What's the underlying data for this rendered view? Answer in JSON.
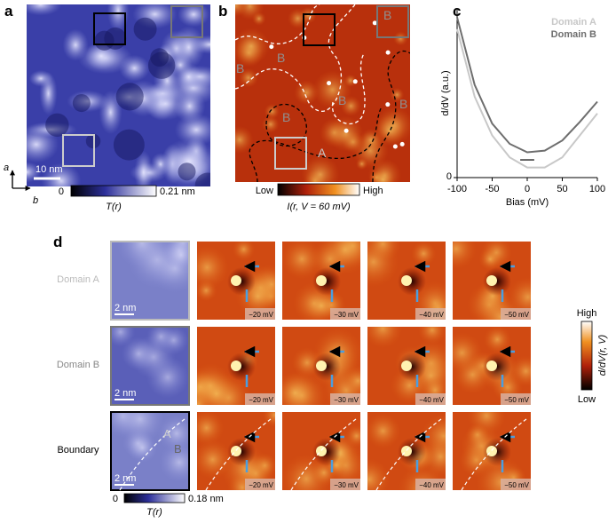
{
  "figure": {
    "a": {
      "label": "a",
      "scale_bar": "10 nm",
      "axis_a": "a",
      "axis_b": "b",
      "colorbar": {
        "min": "0",
        "max": "0.21 nm",
        "title": "T(r)"
      }
    },
    "b": {
      "label": "b",
      "domain_labels": [
        "B",
        "B",
        "B",
        "B",
        "B",
        "B",
        "A"
      ],
      "colorbar": {
        "min": "Low",
        "max": "High",
        "title": "I(r, V = 60 mV)"
      }
    },
    "c": {
      "label": "c"
    },
    "d": {
      "label": "d",
      "rows": [
        "Domain A",
        "Domain B",
        "Boundary"
      ],
      "biases": [
        "−20 mV",
        "−30 mV",
        "−40 mV",
        "−50 mV"
      ],
      "scale_bar": "2 nm",
      "boundary_labels": [
        "A",
        "B"
      ],
      "colorbar": {
        "max": "High",
        "min": "Low",
        "title": "d/dV(r, V)"
      },
      "topo_colorbar": {
        "min": "0",
        "max": "0.18 nm",
        "title": "T(r)"
      }
    }
  },
  "chart_data": {
    "type": "line",
    "xlabel": "Bias (mV)",
    "ylabel": "d/dV (a.u.)",
    "x": [
      -100,
      -75,
      -50,
      -25,
      0,
      25,
      50,
      75,
      100
    ],
    "series": [
      {
        "name": "Domain A",
        "color": "#c8c8c8",
        "values": [
          8.8,
          4.8,
          2.5,
          1.2,
          0.6,
          0.6,
          1.2,
          2.5,
          3.8
        ]
      },
      {
        "name": "Domain B",
        "color": "#6e6e6e",
        "values": [
          9.5,
          5.5,
          3.2,
          2.0,
          1.5,
          1.6,
          2.2,
          3.3,
          4.5
        ]
      }
    ],
    "xlim": [
      -100,
      100
    ],
    "xticks": [
      -100,
      -50,
      0,
      50,
      100
    ],
    "ylim": [
      0,
      10
    ],
    "yticks": [
      0
    ]
  }
}
